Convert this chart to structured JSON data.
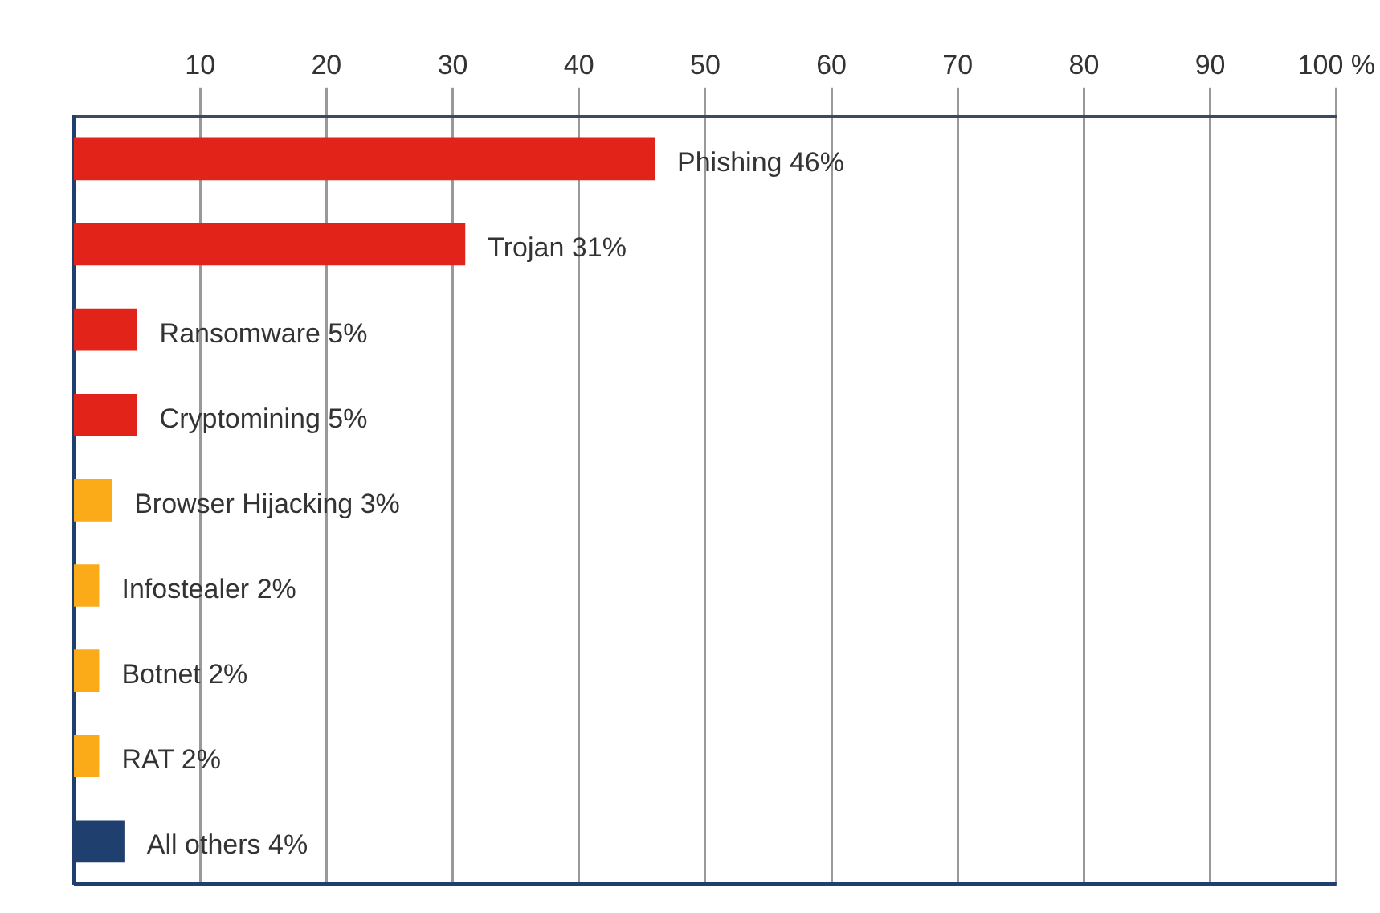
{
  "chart_data": {
    "type": "bar",
    "orientation": "horizontal",
    "categories": [
      "Phishing",
      "Trojan",
      "Ransomware",
      "Cryptomining",
      "Browser Hijacking",
      "Infostealer",
      "Botnet",
      "RAT",
      "All others"
    ],
    "values": [
      46,
      31,
      5,
      5,
      3,
      2,
      2,
      2,
      4
    ],
    "value_labels": [
      "46%",
      "31%",
      "5%",
      "5%",
      "3%",
      "2%",
      "2%",
      "2%",
      "4%"
    ],
    "colors": [
      "#e2231a",
      "#e2231a",
      "#e2231a",
      "#e2231a",
      "#fbab18",
      "#fbab18",
      "#fbab18",
      "#fbab18",
      "#1f3f6e"
    ],
    "xlim": [
      0,
      100
    ],
    "xticks": [
      10,
      20,
      30,
      40,
      50,
      60,
      70,
      80,
      90,
      {
        "value": 100,
        "label": "100 %"
      }
    ],
    "grid": "x",
    "tick_labels": "x",
    "legend": false
  }
}
